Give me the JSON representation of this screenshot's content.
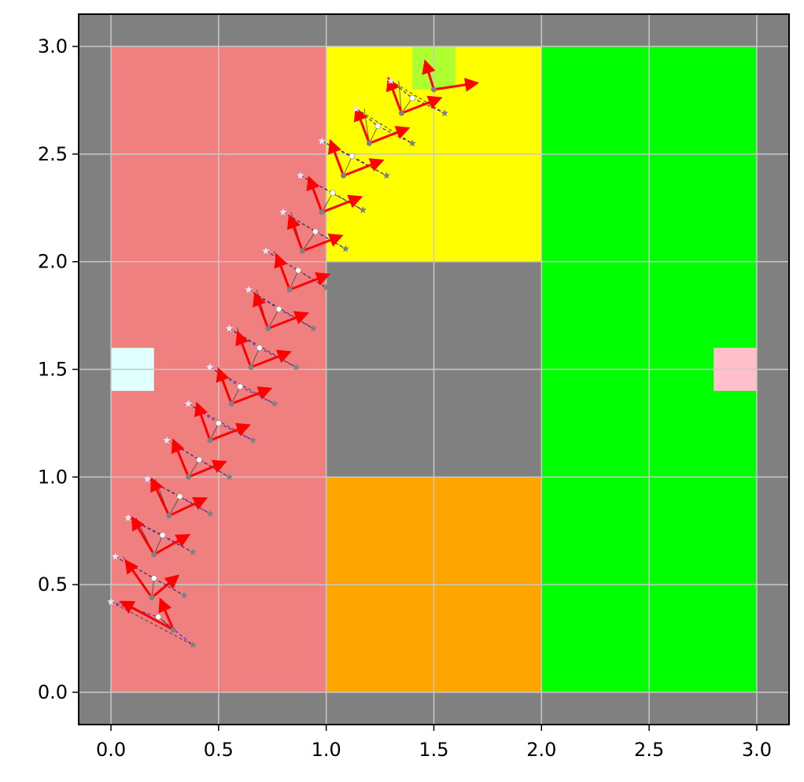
{
  "chart_data": {
    "type": "scatter",
    "title": "",
    "xlabel": "",
    "ylabel": "",
    "xlim": [
      -0.15,
      3.15
    ],
    "ylim": [
      -0.15,
      3.15
    ],
    "grid": true,
    "x_ticks": [
      "0.0",
      "0.5",
      "1.0",
      "1.5",
      "2.0",
      "2.5",
      "3.0"
    ],
    "y_ticks": [
      "0.0",
      "0.5",
      "1.0",
      "1.5",
      "2.0",
      "2.5",
      "3.0"
    ],
    "colors": {
      "background": "#808080",
      "grid": "#c8c8c8",
      "trail_purple": "#5a2bd6",
      "trail_gray": "#404040",
      "arrow": "#ff0000",
      "marker_gray": "#808080",
      "marker_white": "#ffffff",
      "marker_lavender": "#e6e6fa"
    },
    "regions": [
      {
        "x0": 0,
        "x1": 1,
        "y0": 0,
        "y1": 3,
        "color": "#f08080"
      },
      {
        "x0": 1,
        "x1": 2,
        "y0": 2,
        "y1": 3,
        "color": "#ffff00"
      },
      {
        "x0": 1,
        "x1": 2,
        "y0": 0,
        "y1": 1,
        "color": "#ffa500"
      },
      {
        "x0": 2,
        "x1": 3,
        "y0": 0,
        "y1": 3,
        "color": "#00ff00"
      },
      {
        "x0": 0,
        "x1": 0.2,
        "y0": 1.4,
        "y1": 1.6,
        "color": "#e0ffff"
      },
      {
        "x0": 2.8,
        "x1": 3,
        "y0": 1.4,
        "y1": 1.6,
        "color": "#ffc0cb"
      },
      {
        "x0": 1.4,
        "x1": 1.6,
        "y0": 2.8,
        "y1": 3,
        "color": "#adff2f"
      }
    ],
    "steps": [
      {
        "pos": [
          0.29,
          0.29
        ],
        "white": [
          0.22,
          0.35
        ],
        "lav": [
          0.0,
          0.42
        ],
        "gray": [
          0.38,
          0.22
        ],
        "a1": [
          -0.06,
          0.14
        ],
        "a2": [
          -0.24,
          0.13
        ]
      },
      {
        "pos": [
          0.19,
          0.44
        ],
        "white": [
          0.2,
          0.53
        ],
        "lav": [
          0.02,
          0.63
        ],
        "gray": [
          0.34,
          0.45
        ],
        "a1": [
          -0.12,
          0.17
        ],
        "a2": [
          0.12,
          0.1
        ]
      },
      {
        "pos": [
          0.2,
          0.64
        ],
        "white": [
          0.24,
          0.73
        ],
        "lav": [
          0.08,
          0.81
        ],
        "gray": [
          0.38,
          0.65
        ],
        "a1": [
          -0.1,
          0.17
        ],
        "a2": [
          0.16,
          0.09
        ]
      },
      {
        "pos": [
          0.27,
          0.82
        ],
        "white": [
          0.32,
          0.91
        ],
        "lav": [
          0.17,
          0.99
        ],
        "gray": [
          0.46,
          0.83
        ],
        "a1": [
          -0.08,
          0.17
        ],
        "a2": [
          0.17,
          0.08
        ]
      },
      {
        "pos": [
          0.36,
          1.0
        ],
        "white": [
          0.41,
          1.08
        ],
        "lav": [
          0.26,
          1.17
        ],
        "gray": [
          0.55,
          1.0
        ],
        "a1": [
          -0.07,
          0.17
        ],
        "a2": [
          0.17,
          0.07
        ]
      },
      {
        "pos": [
          0.46,
          1.17
        ],
        "white": [
          0.5,
          1.25
        ],
        "lav": [
          0.36,
          1.34
        ],
        "gray": [
          0.66,
          1.17
        ],
        "a1": [
          -0.06,
          0.17
        ],
        "a2": [
          0.18,
          0.07
        ]
      },
      {
        "pos": [
          0.56,
          1.34
        ],
        "white": [
          0.6,
          1.42
        ],
        "lav": [
          0.46,
          1.51
        ],
        "gray": [
          0.76,
          1.34
        ],
        "a1": [
          -0.06,
          0.16
        ],
        "a2": [
          0.18,
          0.07
        ]
      },
      {
        "pos": [
          0.65,
          1.51
        ],
        "white": [
          0.69,
          1.6
        ],
        "lav": [
          0.55,
          1.69
        ],
        "gray": [
          0.86,
          1.51
        ],
        "a1": [
          -0.06,
          0.16
        ],
        "a2": [
          0.18,
          0.07
        ]
      },
      {
        "pos": [
          0.73,
          1.69
        ],
        "white": [
          0.78,
          1.78
        ],
        "lav": [
          0.64,
          1.87
        ],
        "gray": [
          0.94,
          1.69
        ],
        "a1": [
          -0.06,
          0.16
        ],
        "a2": [
          0.18,
          0.07
        ]
      },
      {
        "pos": [
          0.83,
          1.87
        ],
        "white": [
          0.87,
          1.96
        ],
        "lav": [
          0.72,
          2.05
        ],
        "gray": [
          1.0,
          1.88
        ],
        "a1": [
          -0.06,
          0.16
        ],
        "a2": [
          0.18,
          0.07
        ]
      },
      {
        "pos": [
          0.89,
          2.05
        ],
        "white": [
          0.95,
          2.14
        ],
        "lav": [
          0.8,
          2.23
        ],
        "gray": [
          1.09,
          2.06
        ],
        "a1": [
          -0.06,
          0.16
        ],
        "a2": [
          0.18,
          0.07
        ]
      },
      {
        "pos": [
          0.98,
          2.23
        ],
        "white": [
          1.03,
          2.32
        ],
        "lav": [
          0.88,
          2.4
        ],
        "gray": [
          1.17,
          2.24
        ],
        "a1": [
          -0.06,
          0.16
        ],
        "a2": [
          0.18,
          0.07
        ]
      },
      {
        "pos": [
          1.08,
          2.4
        ],
        "white": [
          1.12,
          2.49
        ],
        "lav": [
          0.98,
          2.56
        ],
        "gray": [
          1.28,
          2.4
        ],
        "a1": [
          -0.06,
          0.16
        ],
        "a2": [
          0.18,
          0.07
        ]
      },
      {
        "pos": [
          1.2,
          2.55
        ],
        "white": [
          1.24,
          2.63
        ],
        "lav": [
          1.14,
          2.71
        ],
        "gray": [
          1.4,
          2.55
        ],
        "a1": [
          -0.06,
          0.16
        ],
        "a2": [
          0.18,
          0.07
        ]
      },
      {
        "pos": [
          1.35,
          2.69
        ],
        "white": [
          1.4,
          2.76
        ],
        "lav": [
          1.3,
          2.84
        ],
        "gray": [
          1.55,
          2.69
        ],
        "a1": [
          -0.06,
          0.16
        ],
        "a2": [
          0.18,
          0.07
        ]
      },
      {
        "pos": [
          1.5,
          2.8
        ],
        "white": null,
        "lav": null,
        "gray": null,
        "a1": [
          -0.04,
          0.13
        ],
        "a2": [
          0.2,
          0.03
        ]
      }
    ]
  }
}
